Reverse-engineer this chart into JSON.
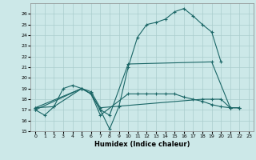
{
  "title": "",
  "xlabel": "Humidex (Indice chaleur)",
  "ylabel": "",
  "bg_color": "#cce8e8",
  "grid_color": "#aacccc",
  "line_color": "#1a6666",
  "xlim": [
    -0.5,
    23.5
  ],
  "ylim": [
    15,
    27
  ],
  "yticks": [
    15,
    16,
    17,
    18,
    19,
    20,
    21,
    22,
    23,
    24,
    25,
    26
  ],
  "xticks": [
    0,
    1,
    2,
    3,
    4,
    5,
    6,
    7,
    8,
    9,
    10,
    11,
    12,
    13,
    14,
    15,
    16,
    17,
    18,
    19,
    20,
    21,
    22,
    23
  ],
  "series": [
    {
      "x": [
        0,
        1,
        2,
        3,
        4,
        5,
        6,
        7,
        8,
        9,
        10,
        11,
        12,
        13,
        14,
        15,
        16,
        17,
        18,
        19,
        20
      ],
      "y": [
        17,
        16.5,
        17.3,
        19,
        19.3,
        19,
        18.5,
        17,
        15.2,
        17.3,
        21,
        23.8,
        25,
        25.2,
        25.5,
        26.2,
        26.5,
        25.8,
        25,
        24.3,
        21.5
      ]
    },
    {
      "x": [
        0,
        5,
        6,
        7,
        8,
        10,
        19,
        21,
        22
      ],
      "y": [
        17,
        19,
        18.5,
        17,
        16.5,
        21.3,
        21.5,
        17.2,
        17.2
      ]
    },
    {
      "x": [
        0,
        2,
        5,
        6,
        7,
        18,
        19,
        20,
        21,
        22
      ],
      "y": [
        17.2,
        17.3,
        19,
        18.7,
        17.2,
        18,
        18,
        18,
        17.2,
        17.2
      ]
    },
    {
      "x": [
        0,
        5,
        6,
        7,
        10,
        11,
        12,
        13,
        14,
        15,
        16,
        17,
        18,
        19,
        20,
        21,
        22
      ],
      "y": [
        17.2,
        19,
        18.5,
        16.5,
        18.5,
        18.5,
        18.5,
        18.5,
        18.5,
        18.5,
        18.2,
        18,
        17.8,
        17.5,
        17.3,
        17.2,
        17.2
      ]
    }
  ]
}
